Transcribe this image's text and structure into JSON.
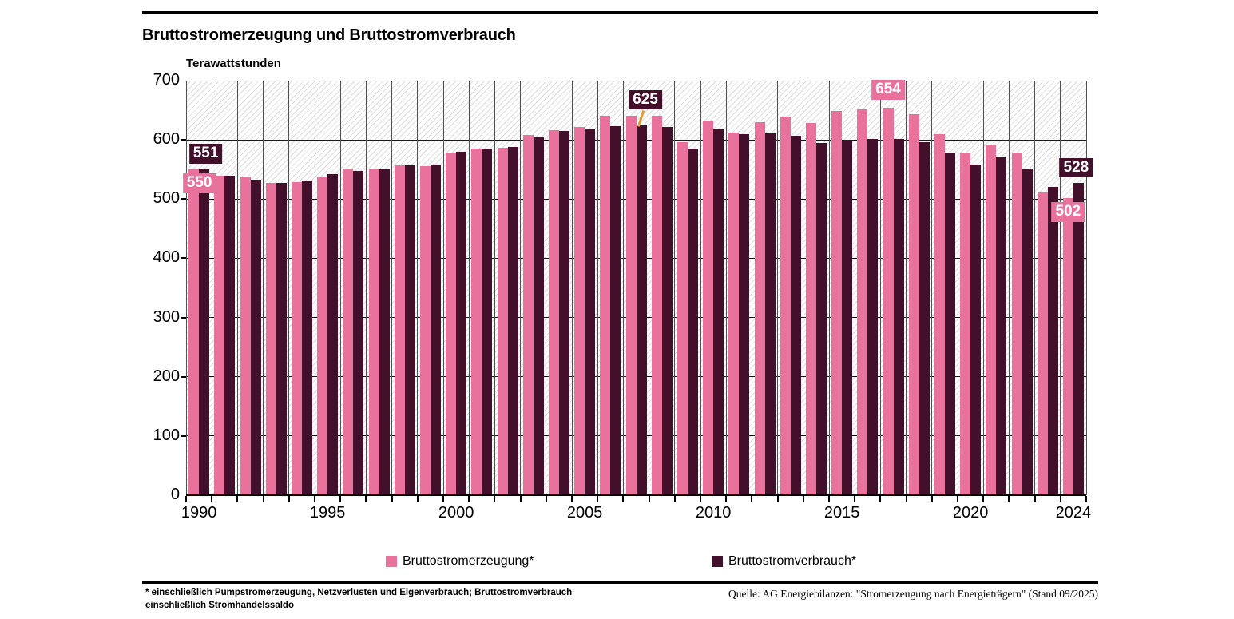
{
  "header": {
    "title": "Bruttostromerzeugung und Bruttostromverbrauch",
    "unit_label": "Terawattstunden"
  },
  "chart_data": {
    "type": "bar",
    "title": "Bruttostromerzeugung und Bruttostromverbrauch",
    "xlabel": "",
    "ylabel": "Terawattstunden",
    "ylim": [
      0,
      700
    ],
    "ytick_interval": 100,
    "yticks": [
      0,
      100,
      200,
      300,
      400,
      500,
      600,
      700
    ],
    "xtick_labels": [
      "1990",
      "1995",
      "2000",
      "2005",
      "2010",
      "2015",
      "2020",
      "2024"
    ],
    "grid": true,
    "background": "diagonal-hatch",
    "legend_position": "bottom",
    "categories": [
      1990,
      1991,
      1992,
      1993,
      1994,
      1995,
      1996,
      1997,
      1998,
      1999,
      2000,
      2001,
      2002,
      2003,
      2004,
      2005,
      2006,
      2007,
      2008,
      2009,
      2010,
      2011,
      2012,
      2013,
      2014,
      2015,
      2016,
      2017,
      2018,
      2019,
      2020,
      2021,
      2022,
      2023,
      2024
    ],
    "series": [
      {
        "name": "Bruttostromerzeugung*",
        "color": "#e8729c",
        "values": [
          550,
          540,
          537,
          528,
          529,
          537,
          552,
          552,
          557,
          556,
          577,
          586,
          587,
          608,
          617,
          622,
          640,
          641,
          641,
          596,
          633,
          613,
          630,
          639,
          628,
          649,
          651,
          654,
          643,
          609,
          577,
          592,
          578,
          511,
          502
        ]
      },
      {
        "name": "Bruttostromverbrauch*",
        "color": "#42102a",
        "values": [
          551,
          540,
          533,
          528,
          531,
          542,
          548,
          550,
          557,
          558,
          580,
          585,
          588,
          606,
          615,
          619,
          623,
          625,
          622,
          586,
          618,
          610,
          611,
          607,
          595,
          600,
          601,
          602,
          596,
          578,
          559,
          570,
          551,
          520,
          528
        ]
      }
    ],
    "annotations": [
      {
        "series": 0,
        "year": 1990,
        "text": "550",
        "placement": "overlap",
        "dx": 7
      },
      {
        "series": 1,
        "year": 1990,
        "text": "551",
        "placement": "above",
        "gap": 6,
        "dx": 2
      },
      {
        "series": 1,
        "year": 2007,
        "text": "625",
        "placement": "above",
        "gap": 19,
        "dx": 5,
        "connector": true
      },
      {
        "series": 0,
        "year": 2017,
        "text": "654",
        "placement": "above",
        "gap": 10,
        "dx": 0
      },
      {
        "series": 1,
        "year": 2024,
        "text": "528",
        "placement": "above",
        "gap": 6,
        "dx": -3
      },
      {
        "series": 0,
        "year": 2024,
        "text": "502",
        "placement": "overlap",
        "dx": 0
      }
    ]
  },
  "legend": {
    "items": [
      {
        "label": "Bruttostromerzeugung*",
        "color": "#e8729c"
      },
      {
        "label": "Bruttostromverbrauch*",
        "color": "#42102a"
      }
    ]
  },
  "footer": {
    "footnote_line1": "* einschließlich Pumpstromerzeugung, Netzverlusten und Eigenverbrauch; Bruttostromverbrauch",
    "footnote_line2": "einschließlich Stromhandelssaldo",
    "source": "Quelle: AG Energiebilanzen: \"Stromerzeugung nach Energieträgern\" (Stand 09/2025)"
  },
  "colors": {
    "generation": "#e8729c",
    "consumption": "#42102a",
    "connector_line": "#e09a2e",
    "hatch_line": "#dcdcdc",
    "gridline_h": "#1a1a1a",
    "gridline_v": "#4f4f4f",
    "rule": "#000000"
  }
}
